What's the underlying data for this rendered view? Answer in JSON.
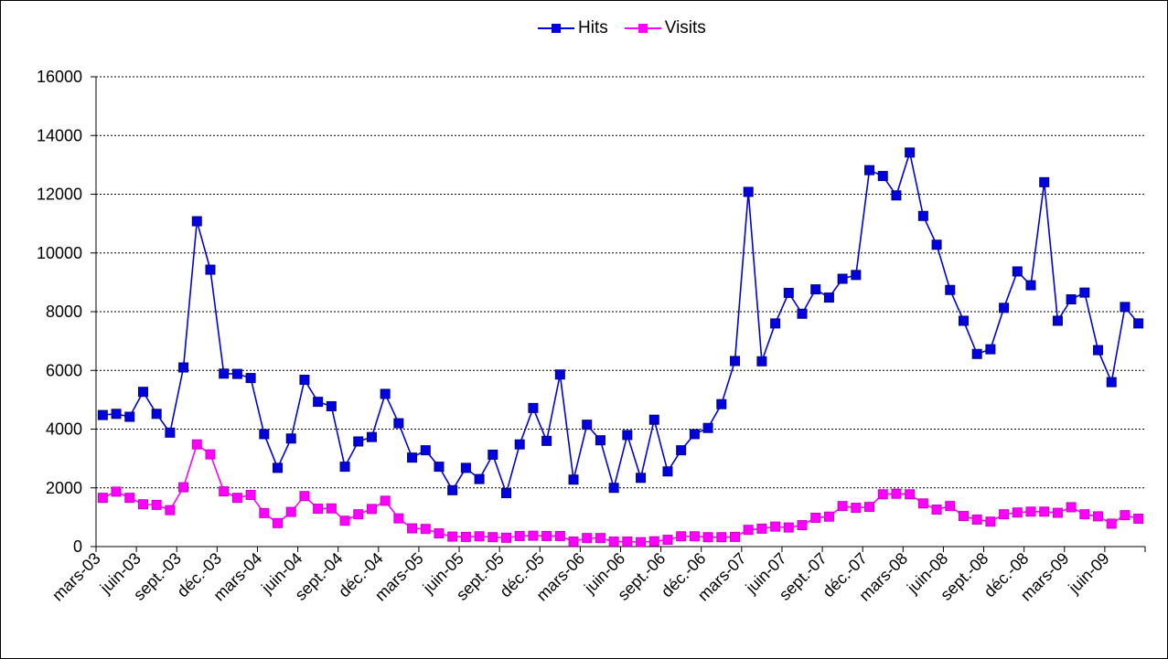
{
  "chart_data": {
    "type": "line",
    "title": "",
    "xlabel": "",
    "ylabel": "",
    "ylim": [
      0,
      16000
    ],
    "y_ticks": [
      "0",
      "2000",
      "4000",
      "6000",
      "8000",
      "10000",
      "12000",
      "14000",
      "16000"
    ],
    "x_tick_labels": [
      "mars-03",
      "juin-03",
      "sept.-03",
      "déc.-03",
      "mars-04",
      "juin-04",
      "sept.-04",
      "déc.-04",
      "mars-05",
      "juin-05",
      "sept.-05",
      "déc.-05",
      "mars-06",
      "juin-06",
      "sept.-06",
      "déc.-06",
      "mars-07",
      "juin-07",
      "sept.-07",
      "déc.-07",
      "mars-08",
      "juin-08",
      "sept.-08",
      "déc.-08",
      "mars-09",
      "juin-09"
    ],
    "x_tick_month_index": [
      0,
      3,
      6,
      9,
      12,
      15,
      18,
      21,
      24,
      27,
      30,
      33,
      36,
      39,
      42,
      45,
      48,
      51,
      54,
      57,
      60,
      63,
      66,
      69,
      72,
      75
    ],
    "grid": "horizontal dashed",
    "legend_position": "top-center",
    "categories": [
      "mars-03",
      "avr.-03",
      "mai-03",
      "juin-03",
      "juil.-03",
      "août-03",
      "sept.-03",
      "oct.-03",
      "nov.-03",
      "déc.-03",
      "janv.-04",
      "févr.-04",
      "mars-04",
      "avr.-04",
      "mai-04",
      "juin-04",
      "juil.-04",
      "août-04",
      "sept.-04",
      "oct.-04",
      "nov.-04",
      "déc.-04",
      "janv.-05",
      "févr.-05",
      "mars-05",
      "avr.-05",
      "mai-05",
      "juin-05",
      "juil.-05",
      "août-05",
      "sept.-05",
      "oct.-05",
      "nov.-05",
      "déc.-05",
      "janv.-06",
      "févr.-06",
      "mars-06",
      "avr.-06",
      "mai-06",
      "juin-06",
      "juil.-06",
      "août-06",
      "sept.-06",
      "oct.-06",
      "nov.-06",
      "déc.-06",
      "janv.-07",
      "févr.-07",
      "mars-07",
      "avr.-07",
      "mai-07",
      "juin-07",
      "juil.-07",
      "août-07",
      "sept.-07",
      "oct.-07",
      "nov.-07",
      "déc.-07",
      "janv.-08",
      "févr.-08",
      "mars-08",
      "avr.-08",
      "mai-08",
      "juin-08",
      "juil.-08",
      "août-08",
      "sept.-08",
      "oct.-08",
      "nov.-08",
      "déc.-08",
      "janv.-09",
      "févr.-09",
      "mars-09",
      "avr.-09",
      "mai-09",
      "juin-09",
      "juil.-09",
      "août-09"
    ],
    "series": [
      {
        "name": "Hits",
        "color": "#0000e0",
        "values": [
          4480,
          4520,
          4420,
          5270,
          4520,
          3880,
          6100,
          11080,
          9430,
          5890,
          5880,
          5740,
          3830,
          2680,
          3680,
          5680,
          4930,
          4780,
          2720,
          3580,
          3730,
          5200,
          4200,
          3030,
          3280,
          2720,
          1920,
          2680,
          2300,
          3130,
          1820,
          3480,
          4720,
          3600,
          5860,
          2280,
          4150,
          3620,
          2000,
          3800,
          2340,
          4320,
          2560,
          3280,
          3830,
          4040,
          4850,
          6320,
          12080,
          6310,
          7600,
          8640,
          7930,
          8760,
          8480,
          9120,
          9250,
          12820,
          12620,
          11960,
          13420,
          11260,
          10280,
          8740,
          7690,
          6560,
          6720,
          8130,
          9370,
          8900,
          12410,
          7690,
          8420,
          8650,
          6690,
          5600,
          8160,
          7600
        ]
      },
      {
        "name": "Visits",
        "color": "#ff00ff",
        "values": [
          1660,
          1870,
          1660,
          1440,
          1420,
          1240,
          2020,
          3480,
          3140,
          1880,
          1660,
          1760,
          1140,
          800,
          1180,
          1720,
          1290,
          1300,
          880,
          1100,
          1280,
          1560,
          960,
          620,
          600,
          450,
          340,
          330,
          350,
          320,
          300,
          360,
          370,
          360,
          360,
          170,
          290,
          290,
          170,
          170,
          150,
          180,
          230,
          350,
          350,
          320,
          320,
          330,
          570,
          610,
          680,
          650,
          730,
          980,
          1020,
          1380,
          1320,
          1350,
          1780,
          1800,
          1780,
          1470,
          1260,
          1380,
          1040,
          920,
          850,
          1100,
          1160,
          1190,
          1190,
          1150,
          1340,
          1100,
          1030,
          780,
          1070,
          950
        ]
      }
    ]
  }
}
